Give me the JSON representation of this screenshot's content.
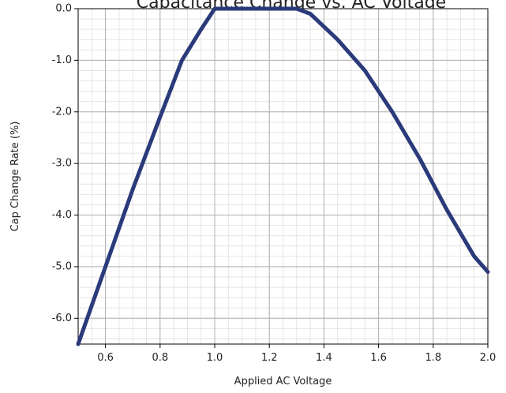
{
  "chart_data": {
    "type": "line",
    "title": "Capacitance Change vs. AC Voltage",
    "xlabel": "Applied AC Voltage",
    "ylabel": "Cap Change Rate (%)",
    "xlim": [
      0.5,
      2.0
    ],
    "ylim": [
      -6.5,
      0.0
    ],
    "x_ticks": [
      0.6,
      0.8,
      1.0,
      1.2,
      1.4,
      1.6,
      1.8,
      2.0
    ],
    "x_tick_labels": [
      "0.6",
      "0.8",
      "1.0",
      "1.2",
      "1.4",
      "1.6",
      "1.8",
      "2.0"
    ],
    "y_ticks": [
      0.0,
      -1.0,
      -2.0,
      -3.0,
      -4.0,
      -5.0,
      -6.0
    ],
    "y_tick_labels": [
      "0.0",
      "-1.0",
      "-2.0",
      "-3.0",
      "-4.0",
      "-5.0",
      "-6.0"
    ],
    "grid": true,
    "series": [
      {
        "color": "#2b3a7a",
        "x": [
          0.5,
          0.6,
          0.7,
          0.8,
          0.88,
          0.95,
          1.0,
          1.1,
          1.2,
          1.3,
          1.35,
          1.45,
          1.55,
          1.65,
          1.75,
          1.85,
          1.95,
          2.0
        ],
        "y": [
          -6.5,
          -5.0,
          -3.5,
          -2.1,
          -1.0,
          -0.4,
          0.0,
          0.0,
          0.0,
          0.0,
          -0.1,
          -0.6,
          -1.2,
          -2.0,
          -2.9,
          -3.9,
          -4.8,
          -5.1
        ]
      }
    ]
  }
}
